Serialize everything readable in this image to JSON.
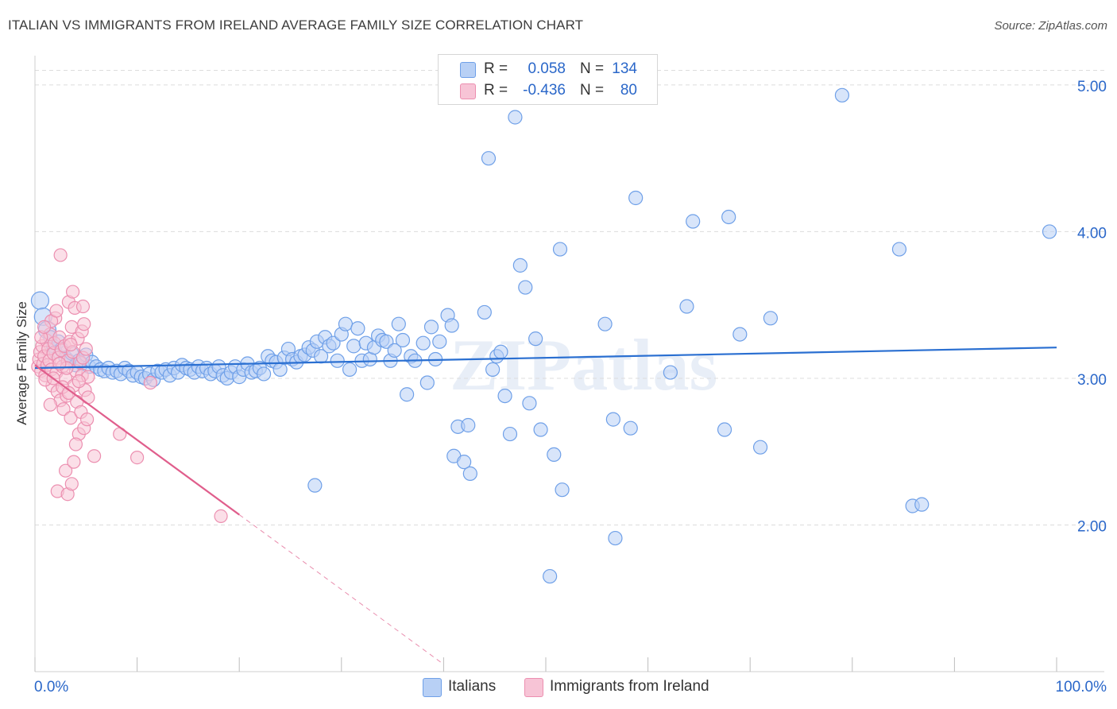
{
  "title": "ITALIAN VS IMMIGRANTS FROM IRELAND AVERAGE FAMILY SIZE CORRELATION CHART",
  "source": "Source: ZipAtlas.com",
  "watermark": "ZIPatlas",
  "colors": {
    "blue": "#6fa0e8",
    "blue_fill": "#b8d0f5",
    "blue_line": "#2a6fd1",
    "pink": "#ec8fb0",
    "pink_fill": "#f7c4d6",
    "pink_line": "#e05e8c",
    "tick_text": "#2a67c9",
    "grid": "#dcdcdc"
  },
  "legend": {
    "rows": [
      {
        "r_label": "R =",
        "r_value": "0.058",
        "n_label": "N =",
        "n_value": "134"
      },
      {
        "r_label": "R =",
        "r_value": "-0.436",
        "n_label": "N =",
        "n_value": "80"
      }
    ]
  },
  "bottom_legend": {
    "italians": "Italians",
    "ireland": "Immigrants from Ireland"
  },
  "chart_data": {
    "type": "scatter",
    "title": "ITALIAN VS IMMIGRANTS FROM IRELAND AVERAGE FAMILY SIZE CORRELATION CHART",
    "xlabel": "",
    "ylabel": "Average Family Size",
    "x_tick_labels": [
      "0.0%",
      "100.0%"
    ],
    "y_tick_labels": [
      "2.00",
      "3.00",
      "4.00",
      "5.00"
    ],
    "y_ticks": [
      2,
      3,
      4,
      5
    ],
    "xlim": [
      0,
      100
    ],
    "ylim": [
      1,
      5.2
    ],
    "grid": "horizontal dashed",
    "legend_position": "top-center",
    "series": [
      {
        "name": "Italians",
        "R": 0.058,
        "N": 134,
        "trend": {
          "x": [
            0,
            100
          ],
          "y": [
            3.07,
            3.21
          ]
        },
        "points": [
          [
            0.5,
            3.53
          ],
          [
            0.8,
            3.42
          ],
          [
            1.2,
            3.33
          ],
          [
            1.5,
            3.28
          ],
          [
            1.8,
            3.22
          ],
          [
            2.0,
            3.18
          ],
          [
            2.3,
            3.25
          ],
          [
            2.6,
            3.2
          ],
          [
            3.0,
            3.14
          ],
          [
            3.3,
            3.12
          ],
          [
            3.6,
            3.17
          ],
          [
            4.0,
            3.09
          ],
          [
            4.3,
            3.12
          ],
          [
            4.6,
            3.1
          ],
          [
            5.0,
            3.16
          ],
          [
            5.3,
            3.08
          ],
          [
            5.6,
            3.11
          ],
          [
            6.0,
            3.08
          ],
          [
            6.4,
            3.06
          ],
          [
            6.8,
            3.05
          ],
          [
            7.2,
            3.07
          ],
          [
            7.6,
            3.04
          ],
          [
            8.0,
            3.05
          ],
          [
            8.4,
            3.03
          ],
          [
            8.8,
            3.07
          ],
          [
            9.2,
            3.05
          ],
          [
            9.6,
            3.02
          ],
          [
            10.0,
            3.04
          ],
          [
            10.4,
            3.01
          ],
          [
            10.8,
            3.0
          ],
          [
            11.2,
            3.03
          ],
          [
            11.6,
            2.99
          ],
          [
            12.0,
            3.05
          ],
          [
            12.4,
            3.04
          ],
          [
            12.8,
            3.06
          ],
          [
            13.2,
            3.02
          ],
          [
            13.6,
            3.07
          ],
          [
            14.0,
            3.04
          ],
          [
            14.4,
            3.09
          ],
          [
            14.8,
            3.07
          ],
          [
            15.2,
            3.06
          ],
          [
            15.6,
            3.04
          ],
          [
            16.0,
            3.08
          ],
          [
            16.4,
            3.05
          ],
          [
            16.8,
            3.07
          ],
          [
            17.2,
            3.03
          ],
          [
            17.6,
            3.05
          ],
          [
            18.0,
            3.08
          ],
          [
            18.4,
            3.02
          ],
          [
            18.8,
            3.0
          ],
          [
            19.2,
            3.04
          ],
          [
            19.6,
            3.08
          ],
          [
            20.0,
            3.01
          ],
          [
            20.4,
            3.06
          ],
          [
            20.8,
            3.1
          ],
          [
            21.2,
            3.04
          ],
          [
            21.6,
            3.05
          ],
          [
            22.0,
            3.07
          ],
          [
            22.4,
            3.03
          ],
          [
            22.8,
            3.15
          ],
          [
            23.2,
            3.12
          ],
          [
            23.6,
            3.11
          ],
          [
            24.0,
            3.06
          ],
          [
            24.4,
            3.14
          ],
          [
            24.8,
            3.2
          ],
          [
            25.2,
            3.13
          ],
          [
            25.6,
            3.11
          ],
          [
            26.0,
            3.15
          ],
          [
            26.4,
            3.16
          ],
          [
            26.8,
            3.21
          ],
          [
            27.2,
            3.19
          ],
          [
            27.6,
            3.25
          ],
          [
            28.0,
            3.15
          ],
          [
            28.4,
            3.28
          ],
          [
            28.8,
            3.22
          ],
          [
            29.2,
            3.24
          ],
          [
            29.6,
            3.12
          ],
          [
            30.0,
            3.3
          ],
          [
            30.4,
            3.37
          ],
          [
            30.8,
            3.06
          ],
          [
            31.2,
            3.22
          ],
          [
            31.6,
            3.34
          ],
          [
            32.0,
            3.12
          ],
          [
            32.4,
            3.24
          ],
          [
            32.8,
            3.13
          ],
          [
            33.2,
            3.21
          ],
          [
            33.6,
            3.29
          ],
          [
            34.0,
            3.26
          ],
          [
            34.4,
            3.25
          ],
          [
            34.8,
            3.12
          ],
          [
            35.2,
            3.19
          ],
          [
            35.6,
            3.37
          ],
          [
            36.0,
            3.26
          ],
          [
            36.4,
            2.89
          ],
          [
            36.8,
            3.15
          ],
          [
            37.2,
            3.12
          ],
          [
            38.0,
            3.24
          ],
          [
            38.4,
            2.97
          ],
          [
            38.8,
            3.35
          ],
          [
            39.2,
            3.13
          ],
          [
            39.6,
            3.25
          ],
          [
            40.4,
            3.43
          ],
          [
            40.8,
            3.36
          ],
          [
            41.4,
            2.67
          ],
          [
            42.4,
            2.68
          ],
          [
            41.0,
            2.47
          ],
          [
            42.0,
            2.43
          ],
          [
            42.6,
            2.35
          ],
          [
            44.4,
            4.5
          ],
          [
            44.0,
            3.45
          ],
          [
            44.8,
            3.06
          ],
          [
            45.2,
            3.15
          ],
          [
            45.6,
            3.18
          ],
          [
            46.0,
            2.88
          ],
          [
            46.5,
            2.62
          ],
          [
            47.0,
            4.78
          ],
          [
            47.5,
            3.77
          ],
          [
            48.0,
            3.62
          ],
          [
            48.4,
            2.83
          ],
          [
            49.0,
            3.27
          ],
          [
            49.5,
            2.65
          ],
          [
            50.4,
            1.65
          ],
          [
            50.8,
            2.48
          ],
          [
            51.4,
            3.88
          ],
          [
            51.6,
            2.24
          ],
          [
            55.8,
            3.37
          ],
          [
            56.6,
            2.72
          ],
          [
            56.8,
            1.91
          ],
          [
            58.3,
            2.66
          ],
          [
            58.8,
            4.23
          ],
          [
            62.2,
            3.04
          ],
          [
            63.8,
            3.49
          ],
          [
            64.4,
            4.07
          ],
          [
            67.5,
            2.65
          ],
          [
            67.9,
            4.1
          ],
          [
            69.0,
            3.3
          ],
          [
            71.0,
            2.53
          ],
          [
            72.0,
            3.41
          ],
          [
            79.0,
            4.93
          ],
          [
            84.6,
            3.88
          ],
          [
            85.9,
            2.13
          ],
          [
            86.8,
            2.14
          ],
          [
            99.3,
            4.0
          ],
          [
            27.4,
            2.27
          ]
        ]
      },
      {
        "name": "Immigrants from Ireland",
        "R": -0.436,
        "N": 80,
        "trend": {
          "x": [
            0,
            20
          ],
          "y": [
            3.09,
            2.07
          ]
        },
        "trend_dashed": {
          "x": [
            20,
            40
          ],
          "y": [
            2.07,
            1.05
          ]
        },
        "points": [
          [
            0.3,
            3.08
          ],
          [
            0.4,
            3.13
          ],
          [
            0.5,
            3.18
          ],
          [
            0.6,
            3.05
          ],
          [
            0.7,
            3.22
          ],
          [
            0.8,
            3.1
          ],
          [
            0.9,
            3.15
          ],
          [
            1.0,
            3.02
          ],
          [
            1.1,
            3.26
          ],
          [
            1.2,
            3.09
          ],
          [
            1.3,
            3.2
          ],
          [
            1.4,
            3.12
          ],
          [
            1.5,
            3.3
          ],
          [
            1.6,
            3.06
          ],
          [
            1.7,
            2.95
          ],
          [
            1.8,
            3.17
          ],
          [
            1.9,
            3.24
          ],
          [
            2.0,
            3.41
          ],
          [
            2.1,
            3.04
          ],
          [
            2.2,
            2.91
          ],
          [
            2.3,
            3.14
          ],
          [
            2.4,
            3.28
          ],
          [
            2.5,
            2.85
          ],
          [
            2.6,
            3.19
          ],
          [
            2.7,
            3.08
          ],
          [
            2.8,
            2.79
          ],
          [
            2.9,
            3.22
          ],
          [
            3.0,
            3.0
          ],
          [
            3.1,
            2.88
          ],
          [
            3.2,
            3.12
          ],
          [
            3.3,
            3.52
          ],
          [
            3.4,
            3.25
          ],
          [
            3.5,
            2.73
          ],
          [
            3.6,
            3.35
          ],
          [
            3.7,
            3.18
          ],
          [
            3.8,
            2.95
          ],
          [
            3.9,
            3.48
          ],
          [
            4.0,
            3.05
          ],
          [
            4.1,
            2.84
          ],
          [
            4.2,
            3.27
          ],
          [
            4.3,
            2.62
          ],
          [
            4.4,
            3.11
          ],
          [
            4.5,
            2.77
          ],
          [
            4.6,
            3.02
          ],
          [
            4.7,
            3.14
          ],
          [
            4.8,
            2.66
          ],
          [
            4.9,
            2.92
          ],
          [
            5.0,
            3.2
          ],
          [
            5.1,
            2.72
          ],
          [
            5.2,
            3.01
          ],
          [
            2.5,
            3.84
          ],
          [
            3.7,
            3.59
          ],
          [
            4.7,
            3.49
          ],
          [
            4.6,
            3.32
          ],
          [
            1.6,
            3.39
          ],
          [
            2.2,
            2.23
          ],
          [
            3.2,
            2.21
          ],
          [
            3.6,
            2.28
          ],
          [
            3.0,
            2.37
          ],
          [
            3.8,
            2.43
          ],
          [
            5.8,
            2.47
          ],
          [
            8.3,
            2.62
          ],
          [
            10.0,
            2.46
          ],
          [
            11.3,
            2.97
          ],
          [
            18.2,
            2.06
          ],
          [
            2.1,
            3.46
          ],
          [
            0.6,
            3.28
          ],
          [
            1.0,
            2.99
          ],
          [
            1.5,
            2.82
          ],
          [
            2.7,
            2.94
          ],
          [
            3.1,
            3.07
          ],
          [
            3.5,
            3.23
          ],
          [
            4.3,
            2.98
          ],
          [
            4.8,
            3.37
          ],
          [
            5.2,
            2.87
          ],
          [
            1.8,
            3.0
          ],
          [
            2.4,
            3.1
          ],
          [
            3.3,
            2.9
          ],
          [
            0.9,
            3.35
          ],
          [
            4.0,
            2.55
          ]
        ]
      }
    ]
  }
}
